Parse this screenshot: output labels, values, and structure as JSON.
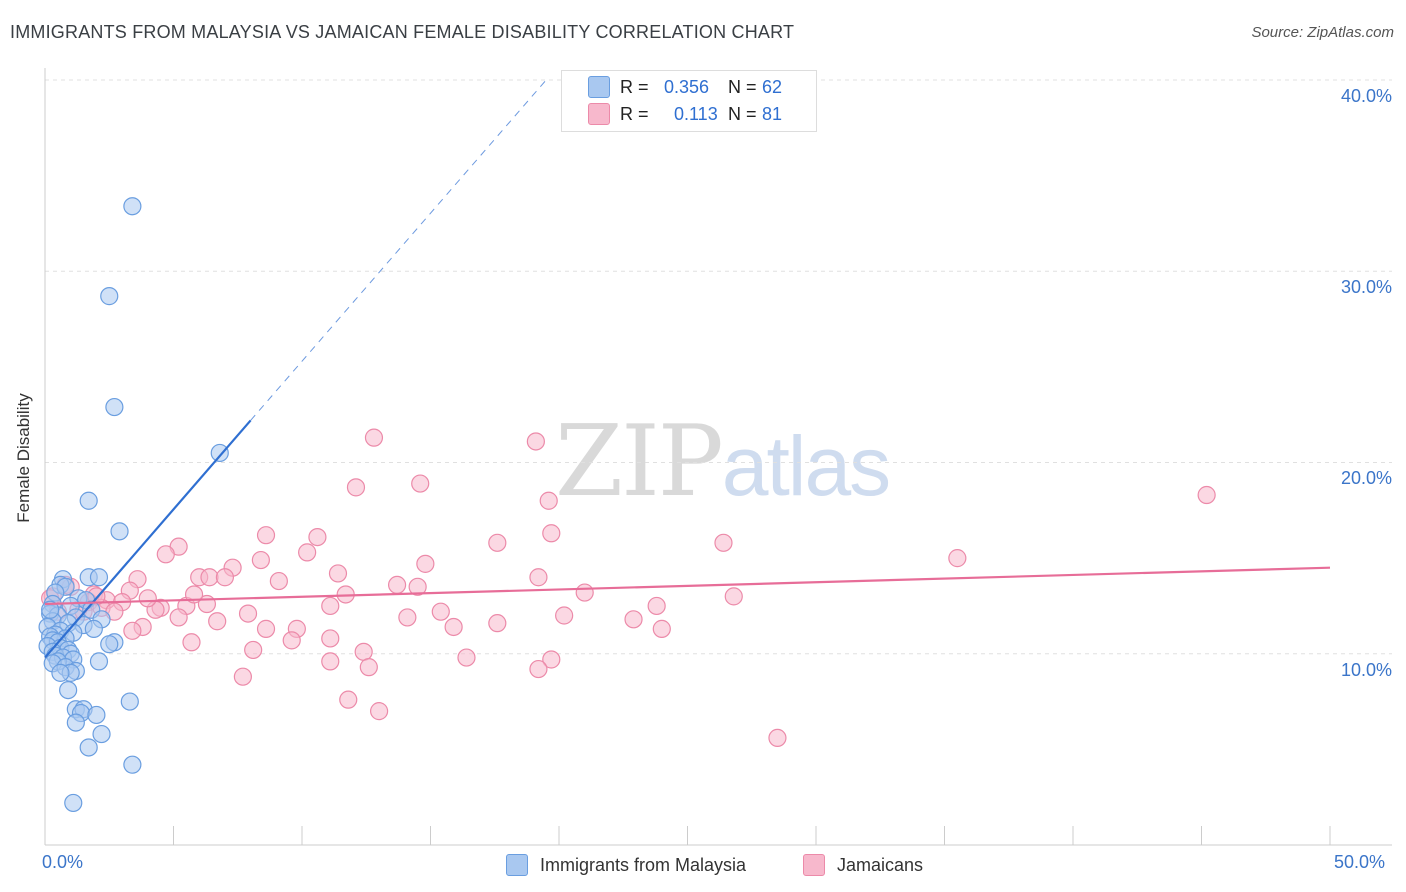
{
  "title": "IMMIGRANTS FROM MALAYSIA VS JAMAICAN FEMALE DISABILITY CORRELATION CHART",
  "source": "Source: ZipAtlas.com",
  "watermark": {
    "zip": "ZIP",
    "atlas": "atlas"
  },
  "legend_top": {
    "rows": [
      {
        "r_label": "R =",
        "r_value": "0.356",
        "n_label": "N =",
        "n_value": "62"
      },
      {
        "r_label": "R =",
        "r_value": "0.113",
        "n_label": "N =",
        "n_value": "81"
      }
    ]
  },
  "legend_bottom": {
    "malaysia": "Immigrants from Malaysia",
    "jamaicans": "Jamaicans"
  },
  "colors": {
    "blue_fill": "#a9c8f0",
    "blue_stroke": "#6a9ee0",
    "blue_line": "#2f6fd1",
    "pink_fill": "#f7b8cc",
    "pink_stroke": "#ec8aa9",
    "pink_line": "#e76d98",
    "axis_text": "#3b75c9",
    "grid": "#e0e0e0"
  },
  "chart_data": {
    "type": "scatter",
    "title": "IMMIGRANTS FROM MALAYSIA VS JAMAICAN FEMALE DISABILITY CORRELATION CHART",
    "xlabel": "",
    "ylabel": "Female Disability",
    "xlim": [
      0,
      50
    ],
    "ylim": [
      0,
      40
    ],
    "x_tick_labels": [
      "0.0%",
      "50.0%"
    ],
    "y_ticks": [
      10,
      20,
      30,
      40
    ],
    "y_tick_labels": [
      "10.0%",
      "20.0%",
      "30.0%",
      "40.0%"
    ],
    "series": [
      {
        "name": "Immigrants from Malaysia",
        "R": 0.356,
        "N": 62,
        "trend": {
          "x0": 0.0,
          "y0": 9.8,
          "x1": 8.0,
          "y1": 22.2,
          "dash_to": {
            "x": 19.5,
            "y": 40.0
          }
        },
        "points": [
          [
            3.4,
            33.4
          ],
          [
            2.5,
            28.7
          ],
          [
            2.7,
            22.9
          ],
          [
            6.8,
            20.5
          ],
          [
            1.7,
            18.0
          ],
          [
            2.9,
            16.4
          ],
          [
            0.7,
            13.9
          ],
          [
            1.7,
            14.0
          ],
          [
            2.1,
            14.0
          ],
          [
            0.6,
            13.6
          ],
          [
            0.8,
            13.5
          ],
          [
            0.4,
            13.2
          ],
          [
            1.3,
            12.9
          ],
          [
            1.6,
            12.8
          ],
          [
            0.3,
            12.6
          ],
          [
            1.0,
            12.5
          ],
          [
            1.8,
            12.3
          ],
          [
            0.2,
            12.1
          ],
          [
            0.5,
            12.0
          ],
          [
            1.2,
            11.9
          ],
          [
            2.2,
            11.8
          ],
          [
            0.3,
            11.7
          ],
          [
            0.9,
            11.6
          ],
          [
            1.5,
            11.5
          ],
          [
            0.1,
            11.4
          ],
          [
            1.9,
            11.3
          ],
          [
            0.6,
            11.2
          ],
          [
            1.1,
            11.1
          ],
          [
            0.4,
            11.0
          ],
          [
            0.2,
            10.9
          ],
          [
            0.8,
            10.8
          ],
          [
            0.3,
            10.7
          ],
          [
            0.5,
            10.6
          ],
          [
            2.7,
            10.6
          ],
          [
            2.5,
            10.5
          ],
          [
            0.1,
            10.4
          ],
          [
            0.6,
            10.3
          ],
          [
            0.9,
            10.2
          ],
          [
            0.3,
            10.1
          ],
          [
            1.0,
            10.0
          ],
          [
            0.4,
            9.9
          ],
          [
            0.7,
            9.8
          ],
          [
            1.1,
            9.7
          ],
          [
            2.1,
            9.6
          ],
          [
            0.5,
            9.6
          ],
          [
            0.3,
            9.5
          ],
          [
            0.8,
            9.3
          ],
          [
            1.2,
            9.1
          ],
          [
            1.0,
            9.0
          ],
          [
            0.6,
            9.0
          ],
          [
            0.9,
            8.1
          ],
          [
            3.3,
            7.5
          ],
          [
            1.2,
            7.1
          ],
          [
            1.5,
            7.1
          ],
          [
            1.4,
            6.9
          ],
          [
            2.0,
            6.8
          ],
          [
            1.2,
            6.4
          ],
          [
            2.2,
            5.8
          ],
          [
            1.7,
            5.1
          ],
          [
            3.4,
            4.2
          ],
          [
            1.1,
            2.2
          ],
          [
            0.2,
            12.3
          ]
        ]
      },
      {
        "name": "Jamaicans",
        "R": 0.113,
        "N": 81,
        "trend": {
          "x0": 0.0,
          "y0": 12.6,
          "x1": 50.0,
          "y1": 14.5
        },
        "points": [
          [
            12.8,
            21.3
          ],
          [
            19.1,
            21.1
          ],
          [
            12.1,
            18.7
          ],
          [
            14.6,
            18.9
          ],
          [
            19.6,
            18.0
          ],
          [
            45.2,
            18.3
          ],
          [
            19.7,
            16.3
          ],
          [
            10.6,
            16.1
          ],
          [
            17.6,
            15.8
          ],
          [
            26.4,
            15.8
          ],
          [
            5.2,
            15.6
          ],
          [
            10.2,
            15.3
          ],
          [
            4.7,
            15.2
          ],
          [
            8.4,
            14.9
          ],
          [
            14.8,
            14.7
          ],
          [
            35.5,
            15.0
          ],
          [
            7.3,
            14.5
          ],
          [
            6.0,
            14.0
          ],
          [
            6.4,
            14.0
          ],
          [
            11.4,
            14.2
          ],
          [
            19.2,
            14.0
          ],
          [
            3.6,
            13.9
          ],
          [
            9.1,
            13.8
          ],
          [
            14.5,
            13.5
          ],
          [
            21.0,
            13.2
          ],
          [
            3.3,
            13.3
          ],
          [
            1.9,
            13.1
          ],
          [
            11.7,
            13.1
          ],
          [
            26.8,
            13.0
          ],
          [
            0.8,
            13.6
          ],
          [
            0.3,
            13.0
          ],
          [
            2.4,
            12.8
          ],
          [
            3.0,
            12.7
          ],
          [
            1.7,
            12.7
          ],
          [
            5.5,
            12.5
          ],
          [
            6.3,
            12.6
          ],
          [
            11.1,
            12.5
          ],
          [
            4.5,
            12.4
          ],
          [
            2.2,
            12.4
          ],
          [
            23.8,
            12.5
          ],
          [
            1.3,
            12.3
          ],
          [
            0.5,
            12.2
          ],
          [
            2.7,
            12.2
          ],
          [
            4.3,
            12.3
          ],
          [
            7.9,
            12.1
          ],
          [
            20.2,
            12.0
          ],
          [
            14.1,
            11.9
          ],
          [
            5.2,
            11.9
          ],
          [
            17.6,
            11.6
          ],
          [
            22.9,
            11.8
          ],
          [
            6.7,
            11.7
          ],
          [
            8.6,
            11.3
          ],
          [
            3.8,
            11.4
          ],
          [
            15.9,
            11.4
          ],
          [
            9.8,
            11.3
          ],
          [
            24.0,
            11.3
          ],
          [
            3.4,
            11.2
          ],
          [
            11.1,
            10.8
          ],
          [
            5.7,
            10.6
          ],
          [
            9.6,
            10.7
          ],
          [
            8.1,
            10.2
          ],
          [
            12.4,
            10.1
          ],
          [
            16.4,
            9.8
          ],
          [
            19.7,
            9.7
          ],
          [
            11.1,
            9.6
          ],
          [
            12.6,
            9.3
          ],
          [
            19.2,
            9.2
          ],
          [
            7.7,
            8.8
          ],
          [
            11.8,
            7.6
          ],
          [
            13.0,
            7.0
          ],
          [
            28.5,
            5.6
          ],
          [
            0.2,
            12.9
          ],
          [
            1.0,
            13.5
          ],
          [
            2.0,
            13.0
          ],
          [
            7.0,
            14.0
          ],
          [
            8.6,
            16.2
          ],
          [
            5.8,
            13.1
          ],
          [
            4.0,
            12.9
          ],
          [
            13.7,
            13.6
          ],
          [
            15.4,
            12.2
          ],
          [
            1.5,
            12.2
          ]
        ]
      }
    ]
  }
}
